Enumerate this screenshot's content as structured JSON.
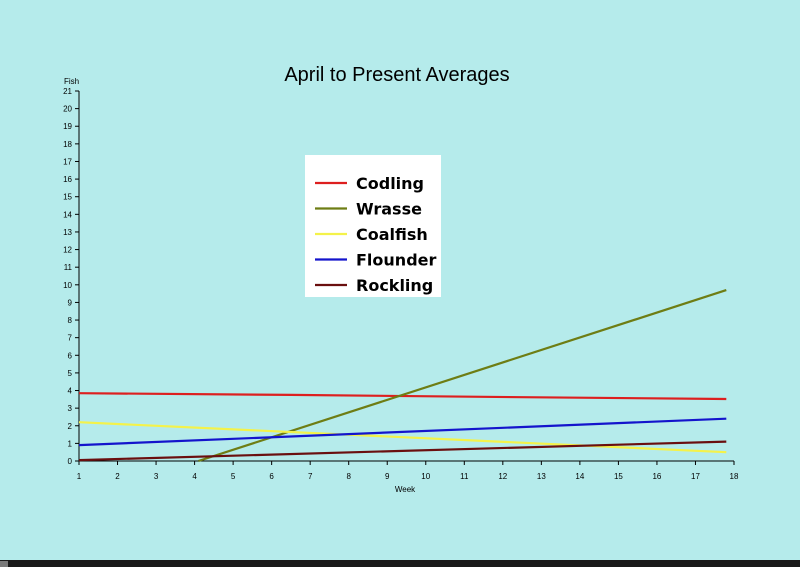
{
  "chart_data": {
    "type": "line",
    "title": "April to Present Averages",
    "xlabel": "Week",
    "ylabel": "Fish",
    "xlim": [
      1,
      18
    ],
    "ylim": [
      0,
      21
    ],
    "x_ticks": [
      1,
      2,
      3,
      4,
      5,
      6,
      7,
      8,
      9,
      10,
      11,
      12,
      13,
      14,
      15,
      16,
      17,
      18
    ],
    "y_ticks": [
      0,
      1,
      2,
      3,
      4,
      5,
      6,
      7,
      8,
      9,
      10,
      11,
      12,
      13,
      14,
      15,
      16,
      17,
      18,
      19,
      20,
      21
    ],
    "grid": false,
    "legend_position": "upper-center",
    "series": [
      {
        "name": "Codling",
        "color": "#dd1f1f",
        "x": [
          1,
          6.5,
          12.5,
          17.8
        ],
        "y": [
          3.85,
          3.75,
          3.62,
          3.52
        ]
      },
      {
        "name": "Wrasse",
        "color": "#6e7d14",
        "x": [
          4.1,
          17.8
        ],
        "y": [
          0,
          9.7
        ]
      },
      {
        "name": "Coalfish",
        "color": "#f4f24a",
        "x": [
          1,
          17.8
        ],
        "y": [
          2.2,
          0.5
        ]
      },
      {
        "name": "Flounder",
        "color": "#1414cc",
        "x": [
          1,
          17.8
        ],
        "y": [
          0.9,
          2.4
        ]
      },
      {
        "name": "Rockling",
        "color": "#6a0f0f",
        "x": [
          1,
          17.8
        ],
        "y": [
          0.05,
          1.1
        ]
      }
    ]
  }
}
